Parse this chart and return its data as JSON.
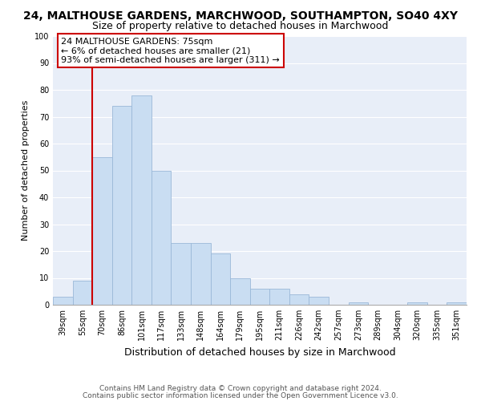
{
  "title": "24, MALTHOUSE GARDENS, MARCHWOOD, SOUTHAMPTON, SO40 4XY",
  "subtitle": "Size of property relative to detached houses in Marchwood",
  "xlabel": "Distribution of detached houses by size in Marchwood",
  "ylabel": "Number of detached properties",
  "bin_labels": [
    "39sqm",
    "55sqm",
    "70sqm",
    "86sqm",
    "101sqm",
    "117sqm",
    "133sqm",
    "148sqm",
    "164sqm",
    "179sqm",
    "195sqm",
    "211sqm",
    "226sqm",
    "242sqm",
    "257sqm",
    "273sqm",
    "289sqm",
    "304sqm",
    "320sqm",
    "335sqm",
    "351sqm"
  ],
  "bar_values": [
    3,
    9,
    55,
    74,
    78,
    50,
    23,
    23,
    19,
    10,
    6,
    6,
    4,
    3,
    0,
    1,
    0,
    0,
    1,
    0,
    1
  ],
  "bar_color": "#c9ddf2",
  "bar_edge_color": "#9ab8d8",
  "vline_color": "#cc0000",
  "ylim": [
    0,
    100
  ],
  "yticks": [
    0,
    10,
    20,
    30,
    40,
    50,
    60,
    70,
    80,
    90,
    100
  ],
  "annotation_title": "24 MALTHOUSE GARDENS: 75sqm",
  "annotation_line1": "← 6% of detached houses are smaller (21)",
  "annotation_line2": "93% of semi-detached houses are larger (311) →",
  "annotation_box_color": "#ffffff",
  "annotation_box_edge": "#cc0000",
  "footnote1": "Contains HM Land Registry data © Crown copyright and database right 2024.",
  "footnote2": "Contains public sector information licensed under the Open Government Licence v3.0.",
  "bg_color": "#e8eef8",
  "title_fontsize": 10,
  "subtitle_fontsize": 9,
  "xlabel_fontsize": 9,
  "ylabel_fontsize": 8,
  "tick_fontsize": 7,
  "annotation_fontsize": 8,
  "footnote_fontsize": 6.5
}
